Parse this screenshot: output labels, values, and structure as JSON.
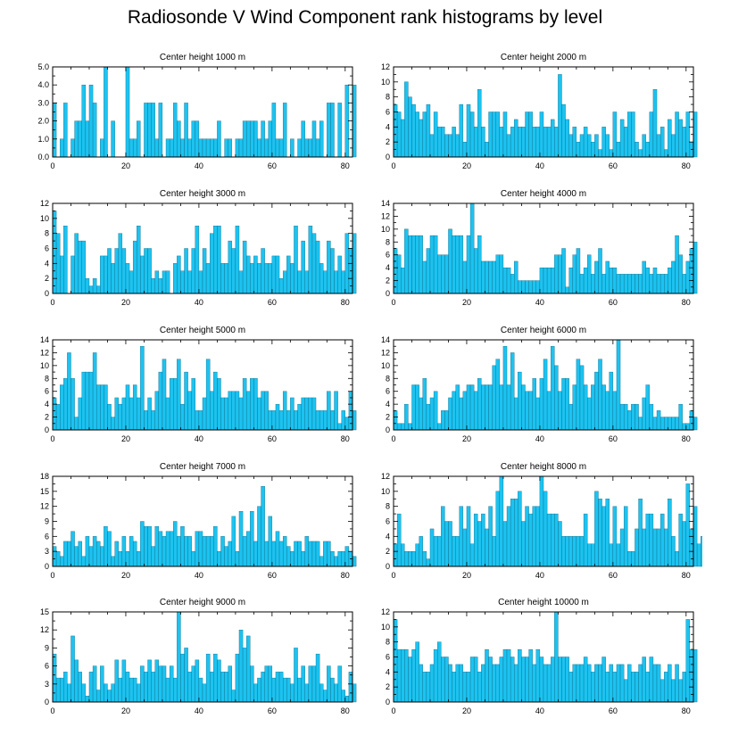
{
  "title": "Radiosonde V Wind Component rank histograms by level",
  "colors": {
    "bar": "#1cc3f0",
    "bar_stroke": "#0a5f7d",
    "axis": "#000000"
  },
  "chart_data": [
    {
      "type": "bar",
      "title": "Center height 1000 m",
      "xlim": [
        0,
        82
      ],
      "ylim": [
        0,
        5
      ],
      "yticks": [
        0.0,
        1.0,
        2.0,
        3.0,
        4.0,
        5.0
      ],
      "ytick_labels": [
        "0.0",
        "1.0",
        "2.0",
        "3.0",
        "4.0",
        "5.0"
      ],
      "xticks": [
        0,
        20,
        40,
        60,
        80
      ],
      "values": [
        3,
        0,
        1,
        3,
        0,
        1,
        2,
        2,
        4,
        2,
        4,
        3,
        0,
        1,
        5,
        0,
        2,
        0,
        0,
        0,
        5,
        1,
        1,
        2,
        0,
        3,
        3,
        3,
        1,
        3,
        0,
        1,
        1,
        3,
        2,
        1,
        3,
        1,
        2,
        2,
        1,
        1,
        1,
        1,
        1,
        2,
        0,
        1,
        1,
        0,
        1,
        1,
        2,
        2,
        2,
        2,
        1,
        2,
        1,
        2,
        3,
        1,
        1,
        3,
        0,
        1,
        0,
        1,
        2,
        1,
        1,
        2,
        1,
        2,
        0,
        3,
        3,
        0,
        3,
        0,
        4,
        0,
        4
      ]
    },
    {
      "type": "bar",
      "title": "Center height 2000 m",
      "xlim": [
        0,
        82
      ],
      "ylim": [
        0,
        12
      ],
      "yticks": [
        0,
        2,
        4,
        6,
        8,
        10,
        12
      ],
      "ytick_labels": [
        "0",
        "2",
        "4",
        "6",
        "8",
        "10",
        "12"
      ],
      "xticks": [
        0,
        20,
        40,
        60,
        80
      ],
      "values": [
        7,
        6,
        5,
        10,
        8,
        7,
        6,
        5,
        6,
        7,
        3,
        6,
        4,
        4,
        3,
        3,
        4,
        3,
        7,
        2,
        7,
        6,
        4,
        9,
        4,
        2,
        6,
        6,
        6,
        4,
        6,
        3,
        4,
        5,
        4,
        4,
        6,
        6,
        4,
        4,
        6,
        4,
        4,
        5,
        4,
        11,
        7,
        5,
        3,
        4,
        2,
        3,
        4,
        3,
        2,
        3,
        1,
        4,
        3,
        1,
        6,
        2,
        5,
        4,
        6,
        6,
        2,
        1,
        3,
        2,
        6,
        9,
        3,
        4,
        1,
        5,
        3,
        6,
        5,
        4,
        6,
        2,
        6
      ]
    },
    {
      "type": "bar",
      "title": "Center height 3000 m",
      "xlim": [
        0,
        82
      ],
      "ylim": [
        0,
        12
      ],
      "yticks": [
        0,
        2,
        4,
        6,
        8,
        10,
        12
      ],
      "ytick_labels": [
        "0",
        "2",
        "4",
        "6",
        "8",
        "10",
        "12"
      ],
      "xticks": [
        0,
        20,
        40,
        60,
        80
      ],
      "values": [
        11,
        8,
        5,
        9,
        0,
        5,
        8,
        7,
        7,
        2,
        1,
        2,
        1,
        5,
        5,
        6,
        4,
        6,
        8,
        6,
        4,
        3,
        7,
        9,
        5,
        6,
        6,
        2,
        3,
        2,
        3,
        3,
        0,
        4,
        5,
        3,
        6,
        3,
        6,
        9,
        3,
        6,
        4,
        8,
        9,
        9,
        4,
        4,
        7,
        6,
        9,
        3,
        7,
        5,
        4,
        5,
        4,
        6,
        4,
        4,
        5,
        5,
        2,
        3,
        5,
        4,
        9,
        3,
        7,
        3,
        9,
        8,
        7,
        4,
        3,
        7,
        6,
        3,
        5,
        3,
        8,
        6,
        8
      ]
    },
    {
      "type": "bar",
      "title": "Center height 4000 m",
      "xlim": [
        0,
        82
      ],
      "ylim": [
        0,
        14
      ],
      "yticks": [
        0,
        2,
        4,
        6,
        8,
        10,
        12,
        14
      ],
      "ytick_labels": [
        "0",
        "2",
        "4",
        "6",
        "8",
        "10",
        "12",
        "14"
      ],
      "xticks": [
        0,
        20,
        40,
        60,
        80
      ],
      "values": [
        7,
        6,
        4,
        10,
        9,
        9,
        9,
        9,
        5,
        7,
        9,
        9,
        6,
        6,
        6,
        10,
        9,
        9,
        9,
        5,
        9,
        14,
        7,
        9,
        5,
        5,
        5,
        5,
        6,
        6,
        4,
        4,
        3,
        5,
        2,
        2,
        2,
        2,
        2,
        2,
        4,
        4,
        4,
        4,
        6,
        6,
        7,
        1,
        4,
        6,
        7,
        3,
        4,
        6,
        3,
        5,
        7,
        3,
        5,
        4,
        4,
        3,
        3,
        3,
        3,
        3,
        3,
        3,
        5,
        4,
        3,
        4,
        3,
        3,
        3,
        4,
        5,
        9,
        6,
        3,
        5,
        7,
        8
      ]
    },
    {
      "type": "bar",
      "title": "Center height 5000 m",
      "xlim": [
        0,
        82
      ],
      "ylim": [
        0,
        14
      ],
      "yticks": [
        0,
        2,
        4,
        6,
        8,
        10,
        12,
        14
      ],
      "ytick_labels": [
        "0",
        "2",
        "4",
        "6",
        "8",
        "10",
        "12",
        "14"
      ],
      "xticks": [
        0,
        20,
        40,
        60,
        80
      ],
      "values": [
        5,
        4,
        7,
        8,
        12,
        8,
        2,
        5,
        9,
        9,
        9,
        12,
        7,
        7,
        7,
        4,
        2,
        5,
        4,
        5,
        7,
        5,
        7,
        5,
        13,
        3,
        5,
        3,
        6,
        9,
        11,
        5,
        8,
        8,
        11,
        4,
        9,
        6,
        8,
        3,
        3,
        5,
        11,
        6,
        9,
        8,
        5,
        5,
        6,
        6,
        6,
        5,
        8,
        6,
        8,
        8,
        5,
        6,
        6,
        3,
        3,
        4,
        3,
        6,
        3,
        5,
        3,
        4,
        5,
        5,
        5,
        5,
        3,
        3,
        3,
        6,
        3,
        6,
        1,
        3,
        2,
        6,
        3
      ]
    },
    {
      "type": "bar",
      "title": "Center height 6000 m",
      "xlim": [
        0,
        82
      ],
      "ylim": [
        0,
        14
      ],
      "yticks": [
        0,
        2,
        4,
        6,
        8,
        10,
        12,
        14
      ],
      "ytick_labels": [
        "0",
        "2",
        "4",
        "6",
        "8",
        "10",
        "12",
        "14"
      ],
      "xticks": [
        0,
        20,
        40,
        60,
        80
      ],
      "values": [
        3,
        1,
        1,
        4,
        1,
        7,
        7,
        5,
        8,
        4,
        5,
        6,
        1,
        3,
        3,
        5,
        6,
        7,
        5,
        6,
        7,
        7,
        6,
        8,
        7,
        7,
        7,
        10,
        11,
        7,
        13,
        7,
        12,
        5,
        9,
        7,
        6,
        6,
        8,
        5,
        8,
        11,
        6,
        13,
        10,
        6,
        8,
        8,
        4,
        7,
        11,
        10,
        7,
        5,
        7,
        9,
        11,
        7,
        6,
        9,
        6,
        14,
        4,
        4,
        3,
        4,
        4,
        2,
        5,
        7,
        4,
        2,
        3,
        2,
        2,
        2,
        2,
        2,
        4,
        1,
        1,
        3,
        2
      ]
    },
    {
      "type": "bar",
      "title": "Center height 7000 m",
      "xlim": [
        0,
        82
      ],
      "ylim": [
        0,
        18
      ],
      "yticks": [
        0,
        3,
        6,
        9,
        12,
        15,
        18
      ],
      "ytick_labels": [
        "0",
        "3",
        "6",
        "9",
        "12",
        "15",
        "18"
      ],
      "xticks": [
        0,
        20,
        40,
        60,
        80
      ],
      "values": [
        4,
        3,
        2,
        5,
        5,
        7,
        4,
        5,
        2,
        6,
        4,
        6,
        5,
        4,
        8,
        7,
        2,
        5,
        3,
        6,
        3,
        6,
        5,
        3,
        9,
        8,
        8,
        4,
        8,
        7,
        6,
        7,
        7,
        9,
        6,
        8,
        6,
        6,
        3,
        7,
        7,
        6,
        6,
        6,
        8,
        3,
        6,
        4,
        5,
        10,
        3,
        11,
        6,
        7,
        11,
        5,
        12,
        16,
        5,
        10,
        5,
        7,
        5,
        6,
        4,
        3,
        5,
        5,
        3,
        6,
        5,
        5,
        5,
        2,
        5,
        5,
        3,
        2,
        3,
        3,
        4,
        3,
        2
      ]
    },
    {
      "type": "bar",
      "title": "Center height 8000 m",
      "xlim": [
        0,
        82
      ],
      "ylim": [
        0,
        12
      ],
      "yticks": [
        0,
        2,
        4,
        6,
        8,
        10,
        12
      ],
      "ytick_labels": [
        "0",
        "2",
        "4",
        "6",
        "8",
        "10",
        "12"
      ],
      "xticks": [
        0,
        20,
        40,
        60,
        80
      ],
      "values": [
        3,
        7,
        3,
        2,
        2,
        2,
        3,
        4,
        2,
        1,
        5,
        4,
        4,
        8,
        6,
        6,
        4,
        4,
        8,
        5,
        8,
        3,
        7,
        6,
        7,
        5,
        8,
        4,
        10,
        12,
        6,
        8,
        9,
        9,
        10,
        6,
        8,
        7,
        8,
        8,
        12,
        10,
        7,
        7,
        7,
        6,
        4,
        4,
        4,
        4,
        4,
        4,
        7,
        3,
        3,
        10,
        9,
        8,
        9,
        3,
        8,
        3,
        5,
        8,
        2,
        2,
        5,
        9,
        5,
        7,
        7,
        5,
        5,
        7,
        5,
        9,
        4,
        2,
        7,
        6,
        11,
        5,
        8,
        3,
        4
      ]
    },
    {
      "type": "bar",
      "title": "Center height 9000 m",
      "xlim": [
        0,
        82
      ],
      "ylim": [
        0,
        15
      ],
      "yticks": [
        0,
        3,
        6,
        9,
        12,
        15
      ],
      "ytick_labels": [
        "0",
        "3",
        "6",
        "9",
        "12",
        "15"
      ],
      "xticks": [
        0,
        20,
        40,
        60,
        80
      ],
      "values": [
        8,
        4,
        4,
        5,
        3,
        11,
        7,
        5,
        3,
        1,
        5,
        6,
        2,
        6,
        3,
        2,
        3,
        7,
        4,
        7,
        5,
        4,
        4,
        3,
        6,
        5,
        7,
        5,
        7,
        6,
        6,
        4,
        6,
        4,
        15,
        8,
        9,
        5,
        6,
        7,
        4,
        3,
        8,
        5,
        8,
        7,
        5,
        5,
        6,
        2,
        8,
        12,
        9,
        11,
        6,
        3,
        4,
        5,
        6,
        6,
        4,
        5,
        5,
        4,
        4,
        3,
        9,
        4,
        6,
        3,
        6,
        6,
        8,
        3,
        2,
        6,
        4,
        3,
        6,
        2,
        1,
        5,
        3
      ]
    },
    {
      "type": "bar",
      "title": "Center height 10000 m",
      "xlim": [
        0,
        82
      ],
      "ylim": [
        0,
        12
      ],
      "yticks": [
        0,
        2,
        4,
        6,
        8,
        10,
        12
      ],
      "ytick_labels": [
        "0",
        "2",
        "4",
        "6",
        "8",
        "10",
        "12"
      ],
      "xticks": [
        0,
        20,
        40,
        60,
        80
      ],
      "values": [
        11,
        7,
        7,
        7,
        6,
        7,
        8,
        5,
        4,
        4,
        5,
        7,
        8,
        6,
        6,
        5,
        4,
        5,
        5,
        4,
        4,
        6,
        6,
        4,
        5,
        7,
        6,
        5,
        5,
        6,
        7,
        7,
        6,
        5,
        7,
        6,
        6,
        7,
        5,
        7,
        6,
        5,
        5,
        6,
        12,
        6,
        6,
        6,
        4,
        5,
        5,
        5,
        6,
        5,
        4,
        5,
        5,
        6,
        4,
        5,
        4,
        5,
        5,
        3,
        5,
        4,
        4,
        5,
        6,
        4,
        6,
        5,
        5,
        3,
        4,
        5,
        3,
        5,
        3,
        4,
        11,
        7,
        7
      ]
    }
  ]
}
